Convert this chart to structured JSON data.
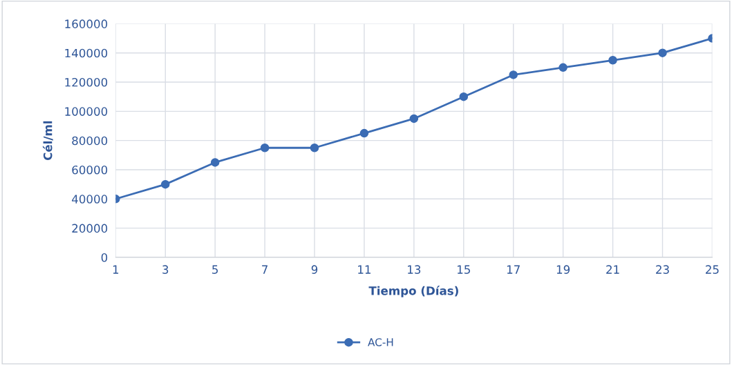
{
  "chart_data": {
    "type": "line",
    "xlabel": "Tiempo (Días)",
    "ylabel": "Cél/ml",
    "categories": [
      "1",
      "3",
      "5",
      "7",
      "9",
      "11",
      "13",
      "15",
      "17",
      "19",
      "21",
      "23",
      "25"
    ],
    "series": [
      {
        "name": "AC-H",
        "color": "#3b6cb4",
        "values": [
          40000,
          50000,
          65000,
          75000,
          75000,
          85000,
          95000,
          110000,
          125000,
          130000,
          135000,
          140000,
          150000
        ]
      }
    ],
    "ylim": [
      0,
      160000
    ],
    "yticks": [
      0,
      20000,
      40000,
      60000,
      80000,
      100000,
      120000,
      140000,
      160000
    ],
    "grid": true,
    "legend": "bottom",
    "marker": "circle",
    "line_style": "solid"
  }
}
